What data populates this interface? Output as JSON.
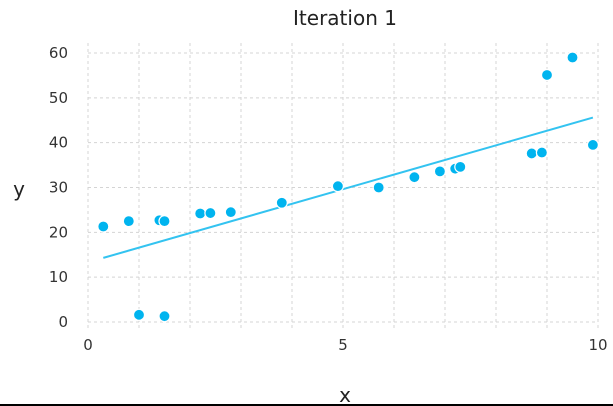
{
  "chart_data": {
    "type": "scatter",
    "title": "Iteration 1",
    "xlabel": "x",
    "ylabel": "y",
    "xlim": [
      0,
      10
    ],
    "ylim": [
      0,
      60
    ],
    "x_ticks": [
      "0",
      "5",
      "10"
    ],
    "y_ticks": [
      "0",
      "10",
      "20",
      "30",
      "40",
      "50",
      "60"
    ],
    "grid": true,
    "colors": {
      "points": "#00b4ef",
      "fit_line": "#33c3f0",
      "grid": "#d4d4d4"
    },
    "points": [
      {
        "x": 0.3,
        "y": 21.3
      },
      {
        "x": 0.8,
        "y": 22.5
      },
      {
        "x": 1.0,
        "y": 1.6
      },
      {
        "x": 1.4,
        "y": 22.7
      },
      {
        "x": 1.5,
        "y": 1.3
      },
      {
        "x": 1.5,
        "y": 22.5
      },
      {
        "x": 2.2,
        "y": 24.2
      },
      {
        "x": 2.4,
        "y": 24.3
      },
      {
        "x": 2.8,
        "y": 24.5
      },
      {
        "x": 3.8,
        "y": 26.6
      },
      {
        "x": 4.9,
        "y": 30.3
      },
      {
        "x": 5.7,
        "y": 30.0
      },
      {
        "x": 6.4,
        "y": 32.3
      },
      {
        "x": 6.9,
        "y": 33.6
      },
      {
        "x": 7.2,
        "y": 34.2
      },
      {
        "x": 7.3,
        "y": 34.6
      },
      {
        "x": 8.7,
        "y": 37.6
      },
      {
        "x": 8.9,
        "y": 37.8
      },
      {
        "x": 9.0,
        "y": 55.1
      },
      {
        "x": 9.5,
        "y": 59.0
      },
      {
        "x": 9.9,
        "y": 39.5
      }
    ],
    "fit_line": {
      "x": [
        0.3,
        9.9
      ],
      "y": [
        14.3,
        45.6
      ]
    }
  }
}
